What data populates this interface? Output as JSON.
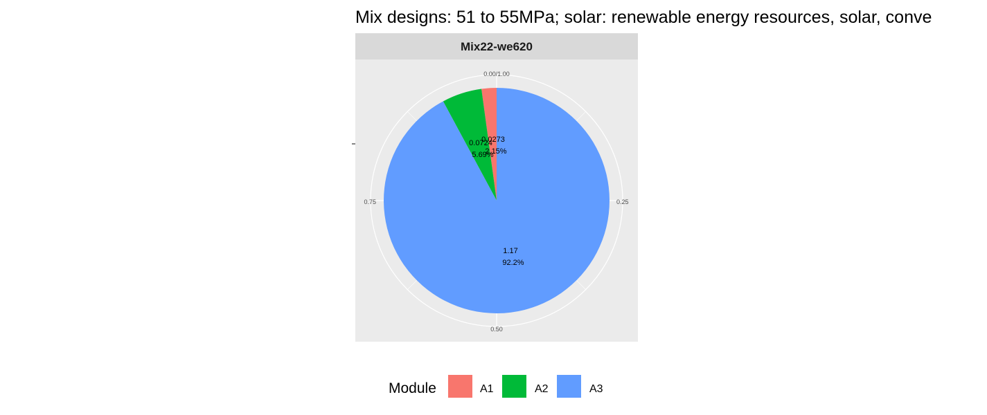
{
  "chart_data": {
    "type": "pie",
    "title": "Mix designs: 51 to 55MPa; solar: renewable energy resources, solar, conve",
    "facet_label": "Mix22-we620",
    "theta_ticks": [
      "0.00/1.00",
      "0.25",
      "0.50",
      "0.75"
    ],
    "categories": [
      "A1",
      "A2",
      "A3"
    ],
    "values": [
      0.0273,
      0.0724,
      1.17
    ],
    "shares": [
      0.0215,
      0.0569,
      0.922
    ],
    "value_labels": [
      "0.0273",
      "0.0724",
      "1.17"
    ],
    "percent_labels": [
      "2.15%",
      "5.69%",
      "92.2%"
    ],
    "colors": [
      "#F8766D",
      "#00BA38",
      "#619CFF"
    ],
    "legend": {
      "title": "Module",
      "position": "bottom",
      "entries": [
        "A1",
        "A2",
        "A3"
      ]
    },
    "grid": true
  }
}
